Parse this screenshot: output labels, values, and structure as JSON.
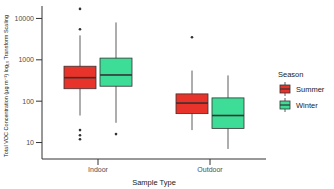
{
  "chart_data": {
    "type": "box",
    "x_label": "Sample Type",
    "y_label": "Total VOC Concentration (µg m⁻³) log₁₀ Transform Scaling",
    "categories": [
      "Indoor",
      "Outdoor"
    ],
    "series": [
      {
        "name": "Summer",
        "color": "#e8332a",
        "values": [
          {
            "min": 45,
            "q1": 200,
            "median": 370,
            "q3": 700,
            "max": 3900,
            "outliers": [
              17000,
              5500,
              20,
              15,
              12
            ]
          },
          {
            "min": 20,
            "q1": 50,
            "median": 90,
            "q3": 150,
            "max": 550,
            "outliers": [
              3500
            ]
          }
        ]
      },
      {
        "name": "Winter",
        "color": "#3ddc97",
        "values": [
          {
            "min": 30,
            "q1": 230,
            "median": 430,
            "q3": 1100,
            "max": 8000,
            "outliers": [
              16
            ]
          },
          {
            "min": 7,
            "q1": 22,
            "median": 45,
            "q3": 120,
            "max": 420,
            "outliers": []
          }
        ]
      }
    ],
    "ylim": [
      4,
      20000
    ],
    "yticks": [
      10,
      100,
      1000,
      10000
    ],
    "log": "y",
    "grid": false,
    "legend": "right",
    "legend_title": "Season"
  }
}
